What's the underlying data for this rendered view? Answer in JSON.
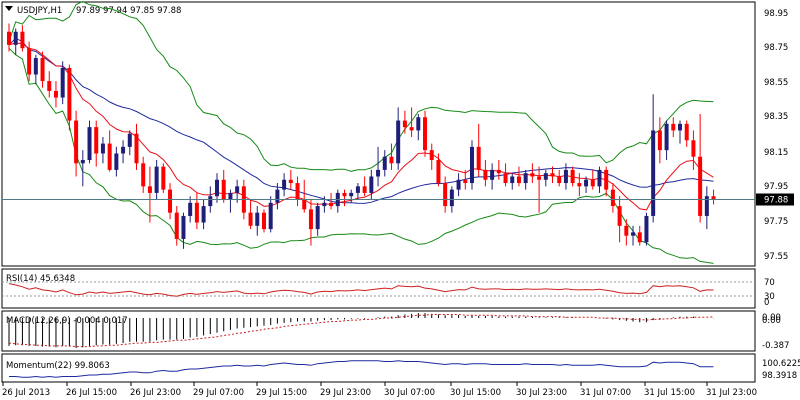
{
  "header": {
    "symbol": "USDJPY,H1",
    "ohlc": "97.89 97.94 97.85 97.88"
  },
  "price_axis": {
    "ticks": [
      "98.95",
      "98.75",
      "98.55",
      "98.35",
      "98.15",
      "97.95",
      "97.75",
      "97.55"
    ],
    "current_price": "97.88"
  },
  "rsi": {
    "label": "RSI(14) 45.6348",
    "levels": [
      "70",
      "30",
      "0"
    ]
  },
  "macd": {
    "label": "MACD(12,26,9) -0.004 0.017",
    "axis": [
      "0.00",
      "0.00",
      "-0.387"
    ]
  },
  "momentum": {
    "label": "Momentum(22) 99.8063",
    "axis": [
      "100.6225",
      "98.3918"
    ]
  },
  "time_axis": [
    "26 Jul 2013",
    "26 Jul 15:00",
    "26 Jul 23:00",
    "29 Jul 07:00",
    "29 Jul 15:00",
    "29 Jul 23:00",
    "30 Jul 07:00",
    "30 Jul 15:00",
    "30 Jul 23:00",
    "31 Jul 07:00",
    "31 Jul 15:00",
    "31 Jul 23:00"
  ],
  "colors": {
    "bull": "#1f1f7a",
    "bear": "#ff0000",
    "ma_fast": "#e8101a",
    "ma_slow": "#1f2aa0",
    "bands": "#168a16",
    "current_line": "#4f7a86"
  },
  "chart_data": {
    "type": "candlestick",
    "ylim": [
      97.5,
      99.02
    ],
    "candles": [
      {
        "o": 98.9,
        "h": 98.95,
        "l": 98.78,
        "c": 98.82
      },
      {
        "o": 98.82,
        "h": 98.92,
        "l": 98.76,
        "c": 98.9
      },
      {
        "o": 98.9,
        "h": 98.94,
        "l": 98.78,
        "c": 98.8
      },
      {
        "o": 98.8,
        "h": 98.84,
        "l": 98.6,
        "c": 98.64
      },
      {
        "o": 98.64,
        "h": 98.76,
        "l": 98.58,
        "c": 98.74
      },
      {
        "o": 98.74,
        "h": 98.78,
        "l": 98.56,
        "c": 98.6
      },
      {
        "o": 98.6,
        "h": 98.66,
        "l": 98.5,
        "c": 98.54
      },
      {
        "o": 98.54,
        "h": 98.6,
        "l": 98.44,
        "c": 98.5
      },
      {
        "o": 98.5,
        "h": 98.72,
        "l": 98.46,
        "c": 98.68
      },
      {
        "o": 98.68,
        "h": 98.7,
        "l": 98.3,
        "c": 98.36
      },
      {
        "o": 98.36,
        "h": 98.42,
        "l": 98.02,
        "c": 98.1
      },
      {
        "o": 98.1,
        "h": 98.18,
        "l": 97.96,
        "c": 98.12
      },
      {
        "o": 98.12,
        "h": 98.36,
        "l": 98.1,
        "c": 98.32
      },
      {
        "o": 98.32,
        "h": 98.36,
        "l": 98.08,
        "c": 98.16
      },
      {
        "o": 98.16,
        "h": 98.26,
        "l": 98.1,
        "c": 98.22
      },
      {
        "o": 98.22,
        "h": 98.3,
        "l": 98.05,
        "c": 98.06
      },
      {
        "o": 98.06,
        "h": 98.2,
        "l": 98.02,
        "c": 98.16
      },
      {
        "o": 98.16,
        "h": 98.24,
        "l": 98.1,
        "c": 98.2
      },
      {
        "o": 98.2,
        "h": 98.3,
        "l": 98.15,
        "c": 98.28
      },
      {
        "o": 98.28,
        "h": 98.34,
        "l": 98.06,
        "c": 98.1
      },
      {
        "o": 98.1,
        "h": 98.14,
        "l": 97.92,
        "c": 97.96
      },
      {
        "o": 97.96,
        "h": 98.08,
        "l": 97.74,
        "c": 97.92
      },
      {
        "o": 97.92,
        "h": 98.12,
        "l": 97.88,
        "c": 98.08
      },
      {
        "o": 98.08,
        "h": 98.1,
        "l": 97.92,
        "c": 97.94
      },
      {
        "o": 97.94,
        "h": 97.98,
        "l": 97.76,
        "c": 97.8
      },
      {
        "o": 97.8,
        "h": 97.84,
        "l": 97.6,
        "c": 97.64
      },
      {
        "o": 97.64,
        "h": 97.8,
        "l": 97.58,
        "c": 97.78
      },
      {
        "o": 97.78,
        "h": 97.9,
        "l": 97.74,
        "c": 97.86
      },
      {
        "o": 97.86,
        "h": 97.92,
        "l": 97.7,
        "c": 97.74
      },
      {
        "o": 97.74,
        "h": 97.88,
        "l": 97.7,
        "c": 97.84
      },
      {
        "o": 97.84,
        "h": 97.96,
        "l": 97.8,
        "c": 97.9
      },
      {
        "o": 97.9,
        "h": 98.04,
        "l": 97.86,
        "c": 98.0
      },
      {
        "o": 98.0,
        "h": 98.06,
        "l": 97.86,
        "c": 97.88
      },
      {
        "o": 97.88,
        "h": 97.94,
        "l": 97.8,
        "c": 97.92
      },
      {
        "o": 97.92,
        "h": 98.0,
        "l": 97.86,
        "c": 97.96
      },
      {
        "o": 97.96,
        "h": 98.0,
        "l": 97.76,
        "c": 97.8
      },
      {
        "o": 97.8,
        "h": 97.88,
        "l": 97.7,
        "c": 97.72
      },
      {
        "o": 97.72,
        "h": 97.84,
        "l": 97.66,
        "c": 97.8
      },
      {
        "o": 97.8,
        "h": 97.82,
        "l": 97.68,
        "c": 97.7
      },
      {
        "o": 97.7,
        "h": 97.9,
        "l": 97.68,
        "c": 97.86
      },
      {
        "o": 97.86,
        "h": 97.98,
        "l": 97.82,
        "c": 97.94
      },
      {
        "o": 97.94,
        "h": 98.04,
        "l": 97.9,
        "c": 98.0
      },
      {
        "o": 98.0,
        "h": 98.06,
        "l": 97.94,
        "c": 97.98
      },
      {
        "o": 97.98,
        "h": 98.02,
        "l": 97.84,
        "c": 97.88
      },
      {
        "o": 97.88,
        "h": 98.0,
        "l": 97.8,
        "c": 97.82
      },
      {
        "o": 97.82,
        "h": 97.88,
        "l": 97.6,
        "c": 97.7
      },
      {
        "o": 97.7,
        "h": 97.86,
        "l": 97.66,
        "c": 97.84
      },
      {
        "o": 97.84,
        "h": 97.9,
        "l": 97.8,
        "c": 97.86
      },
      {
        "o": 97.86,
        "h": 97.92,
        "l": 97.82,
        "c": 97.84
      },
      {
        "o": 97.84,
        "h": 97.94,
        "l": 97.8,
        "c": 97.92
      },
      {
        "o": 97.92,
        "h": 97.94,
        "l": 97.84,
        "c": 97.9
      },
      {
        "o": 97.9,
        "h": 97.94,
        "l": 97.86,
        "c": 97.92
      },
      {
        "o": 97.92,
        "h": 97.98,
        "l": 97.88,
        "c": 97.96
      },
      {
        "o": 97.96,
        "h": 98.02,
        "l": 97.9,
        "c": 97.92
      },
      {
        "o": 97.92,
        "h": 98.06,
        "l": 97.88,
        "c": 98.02
      },
      {
        "o": 98.02,
        "h": 98.2,
        "l": 97.96,
        "c": 98.06
      },
      {
        "o": 98.06,
        "h": 98.18,
        "l": 98.02,
        "c": 98.14
      },
      {
        "o": 98.14,
        "h": 98.22,
        "l": 98.06,
        "c": 98.1
      },
      {
        "o": 98.1,
        "h": 98.44,
        "l": 98.06,
        "c": 98.36
      },
      {
        "o": 98.36,
        "h": 98.42,
        "l": 98.28,
        "c": 98.32
      },
      {
        "o": 98.32,
        "h": 98.44,
        "l": 98.26,
        "c": 98.3
      },
      {
        "o": 98.3,
        "h": 98.4,
        "l": 98.24,
        "c": 98.38
      },
      {
        "o": 98.38,
        "h": 98.42,
        "l": 98.14,
        "c": 98.18
      },
      {
        "o": 98.18,
        "h": 98.22,
        "l": 98.06,
        "c": 98.12
      },
      {
        "o": 98.12,
        "h": 98.16,
        "l": 97.96,
        "c": 97.98
      },
      {
        "o": 97.98,
        "h": 98.02,
        "l": 97.8,
        "c": 97.84
      },
      {
        "o": 97.84,
        "h": 97.96,
        "l": 97.8,
        "c": 97.94
      },
      {
        "o": 97.94,
        "h": 98.04,
        "l": 97.9,
        "c": 98.0
      },
      {
        "o": 98.0,
        "h": 98.06,
        "l": 97.94,
        "c": 97.98
      },
      {
        "o": 97.98,
        "h": 98.24,
        "l": 97.94,
        "c": 98.2
      },
      {
        "o": 98.2,
        "h": 98.34,
        "l": 98.02,
        "c": 98.06
      },
      {
        "o": 98.06,
        "h": 98.12,
        "l": 97.96,
        "c": 98.0
      },
      {
        "o": 98.0,
        "h": 98.1,
        "l": 97.94,
        "c": 98.06
      },
      {
        "o": 98.06,
        "h": 98.12,
        "l": 98.0,
        "c": 98.04
      },
      {
        "o": 98.04,
        "h": 98.1,
        "l": 97.96,
        "c": 97.98
      },
      {
        "o": 97.98,
        "h": 98.04,
        "l": 97.94,
        "c": 98.02
      },
      {
        "o": 98.02,
        "h": 98.08,
        "l": 97.96,
        "c": 97.98
      },
      {
        "o": 97.98,
        "h": 98.06,
        "l": 97.94,
        "c": 98.04
      },
      {
        "o": 98.04,
        "h": 98.1,
        "l": 97.98,
        "c": 98.02
      },
      {
        "o": 98.02,
        "h": 98.08,
        "l": 97.8,
        "c": 98.0
      },
      {
        "o": 98.0,
        "h": 98.06,
        "l": 97.96,
        "c": 98.04
      },
      {
        "o": 98.04,
        "h": 98.08,
        "l": 97.98,
        "c": 98.02
      },
      {
        "o": 98.02,
        "h": 98.06,
        "l": 97.96,
        "c": 97.98
      },
      {
        "o": 97.98,
        "h": 98.1,
        "l": 97.94,
        "c": 98.06
      },
      {
        "o": 98.06,
        "h": 98.08,
        "l": 97.96,
        "c": 97.98
      },
      {
        "o": 97.98,
        "h": 98.04,
        "l": 97.9,
        "c": 97.96
      },
      {
        "o": 97.96,
        "h": 98.02,
        "l": 97.92,
        "c": 98.0
      },
      {
        "o": 98.0,
        "h": 98.06,
        "l": 97.94,
        "c": 97.96
      },
      {
        "o": 97.96,
        "h": 98.08,
        "l": 97.92,
        "c": 98.06
      },
      {
        "o": 98.06,
        "h": 98.08,
        "l": 97.9,
        "c": 97.94
      },
      {
        "o": 97.94,
        "h": 97.98,
        "l": 97.8,
        "c": 97.84
      },
      {
        "o": 97.84,
        "h": 97.9,
        "l": 97.62,
        "c": 97.72
      },
      {
        "o": 97.72,
        "h": 97.76,
        "l": 97.6,
        "c": 97.66
      },
      {
        "o": 97.66,
        "h": 97.72,
        "l": 97.6,
        "c": 97.68
      },
      {
        "o": 97.68,
        "h": 97.72,
        "l": 97.6,
        "c": 97.62
      },
      {
        "o": 97.62,
        "h": 97.8,
        "l": 97.6,
        "c": 97.78
      },
      {
        "o": 97.78,
        "h": 98.52,
        "l": 97.74,
        "c": 98.3
      },
      {
        "o": 98.3,
        "h": 98.38,
        "l": 98.1,
        "c": 98.18
      },
      {
        "o": 98.18,
        "h": 98.36,
        "l": 98.12,
        "c": 98.34
      },
      {
        "o": 98.34,
        "h": 98.38,
        "l": 98.26,
        "c": 98.3
      },
      {
        "o": 98.3,
        "h": 98.36,
        "l": 98.22,
        "c": 98.34
      },
      {
        "o": 98.34,
        "h": 98.36,
        "l": 98.2,
        "c": 98.24
      },
      {
        "o": 98.24,
        "h": 98.3,
        "l": 98.06,
        "c": 98.14
      },
      {
        "o": 98.14,
        "h": 98.4,
        "l": 97.74,
        "c": 97.78
      },
      {
        "o": 97.78,
        "h": 97.96,
        "l": 97.7,
        "c": 97.9
      },
      {
        "o": 97.9,
        "h": 97.94,
        "l": 97.85,
        "c": 97.88
      }
    ],
    "rsi": [
      64,
      60,
      55,
      48,
      52,
      46,
      44,
      40,
      46,
      38,
      32,
      34,
      40,
      37,
      40,
      36,
      38,
      40,
      42,
      38,
      34,
      32,
      36,
      34,
      30,
      28,
      33,
      36,
      33,
      36,
      38,
      41,
      39,
      41,
      43,
      37,
      35,
      37,
      35,
      40,
      43,
      45,
      44,
      41,
      39,
      34,
      40,
      42,
      41,
      44,
      43,
      44,
      46,
      44,
      47,
      49,
      51,
      49,
      58,
      56,
      55,
      57,
      51,
      49,
      45,
      41,
      44,
      47,
      46,
      54,
      49,
      48,
      49,
      49,
      47,
      48,
      47,
      49,
      48,
      48,
      49,
      48,
      47,
      49,
      47,
      46,
      47,
      46,
      48,
      45,
      42,
      38,
      36,
      37,
      35,
      39,
      58,
      55,
      58,
      57,
      58,
      55,
      52,
      42,
      46,
      45.6
    ],
    "macd": [
      -0.4,
      -0.39,
      -0.39,
      -0.4,
      -0.4,
      -0.41,
      -0.41,
      -0.42,
      -0.4,
      -0.41,
      -0.43,
      -0.42,
      -0.4,
      -0.39,
      -0.38,
      -0.38,
      -0.37,
      -0.36,
      -0.34,
      -0.34,
      -0.34,
      -0.34,
      -0.32,
      -0.31,
      -0.31,
      -0.31,
      -0.3,
      -0.28,
      -0.27,
      -0.25,
      -0.23,
      -0.21,
      -0.19,
      -0.17,
      -0.15,
      -0.14,
      -0.13,
      -0.12,
      -0.11,
      -0.1,
      -0.08,
      -0.07,
      -0.06,
      -0.05,
      -0.05,
      -0.05,
      -0.04,
      -0.03,
      -0.03,
      -0.02,
      -0.02,
      -0.01,
      -0.01,
      -0.01,
      0.0,
      0.01,
      0.02,
      0.02,
      0.04,
      0.05,
      0.06,
      0.07,
      0.07,
      0.06,
      0.05,
      0.04,
      0.04,
      0.04,
      0.03,
      0.04,
      0.03,
      0.03,
      0.03,
      0.02,
      0.02,
      0.02,
      0.02,
      0.02,
      0.02,
      0.01,
      0.01,
      0.01,
      0.01,
      0.01,
      0.01,
      0.0,
      0.0,
      0.0,
      0.0,
      -0.01,
      -0.02,
      -0.03,
      -0.04,
      -0.05,
      -0.06,
      -0.06,
      -0.03,
      -0.02,
      0.0,
      0.01,
      0.02,
      0.02,
      0.02,
      0.0,
      0.0,
      -0.004
    ],
    "macd_signal": [
      -0.36,
      -0.37,
      -0.38,
      -0.38,
      -0.39,
      -0.39,
      -0.4,
      -0.4,
      -0.4,
      -0.4,
      -0.41,
      -0.41,
      -0.41,
      -0.4,
      -0.4,
      -0.39,
      -0.39,
      -0.38,
      -0.37,
      -0.36,
      -0.36,
      -0.35,
      -0.35,
      -0.34,
      -0.33,
      -0.32,
      -0.32,
      -0.31,
      -0.3,
      -0.29,
      -0.28,
      -0.27,
      -0.25,
      -0.24,
      -0.22,
      -0.21,
      -0.19,
      -0.18,
      -0.16,
      -0.15,
      -0.14,
      -0.12,
      -0.11,
      -0.1,
      -0.09,
      -0.08,
      -0.07,
      -0.06,
      -0.05,
      -0.05,
      -0.04,
      -0.03,
      -0.03,
      -0.02,
      -0.02,
      -0.01,
      0.0,
      0.0,
      0.01,
      0.02,
      0.03,
      0.04,
      0.04,
      0.05,
      0.05,
      0.05,
      0.05,
      0.05,
      0.04,
      0.04,
      0.04,
      0.04,
      0.04,
      0.03,
      0.03,
      0.03,
      0.03,
      0.03,
      0.02,
      0.02,
      0.02,
      0.02,
      0.02,
      0.01,
      0.01,
      0.01,
      0.01,
      0.01,
      0.0,
      0.0,
      0.0,
      -0.01,
      -0.01,
      -0.02,
      -0.02,
      -0.03,
      -0.02,
      -0.02,
      -0.01,
      -0.01,
      0.0,
      0.0,
      0.01,
      0.01,
      0.01,
      0.017
    ],
    "momentum": [
      98.5,
      98.5,
      98.4,
      98.4,
      98.5,
      98.4,
      98.5,
      98.4,
      98.5,
      98.5,
      98.5,
      98.6,
      98.7,
      98.7,
      98.8,
      98.8,
      98.9,
      99.0,
      99.1,
      99.1,
      99.0,
      99.0,
      99.2,
      99.3,
      99.2,
      99.2,
      99.4,
      99.5,
      99.5,
      99.6,
      99.7,
      99.8,
      99.9,
      99.9,
      100.0,
      99.9,
      99.9,
      100.0,
      99.9,
      100.1,
      100.2,
      100.3,
      100.2,
      100.1,
      100.1,
      100.0,
      100.2,
      100.3,
      100.4,
      100.5,
      100.5,
      100.6,
      100.6,
      100.6,
      100.6,
      100.6,
      100.5,
      100.5,
      100.6,
      100.5,
      100.5,
      100.5,
      100.4,
      100.3,
      100.2,
      100.1,
      100.2,
      100.2,
      100.1,
      100.2,
      100.2,
      100.2,
      100.1,
      100.1,
      100.1,
      100.1,
      100.1,
      100.2,
      100.1,
      100.1,
      100.1,
      100.1,
      100.0,
      100.1,
      100.0,
      100.0,
      100.0,
      100.0,
      100.1,
      100.0,
      99.9,
      99.8,
      99.8,
      99.8,
      99.8,
      99.9,
      100.4,
      100.3,
      100.4,
      100.4,
      100.4,
      100.3,
      100.2,
      99.8,
      99.8,
      99.8
    ]
  }
}
